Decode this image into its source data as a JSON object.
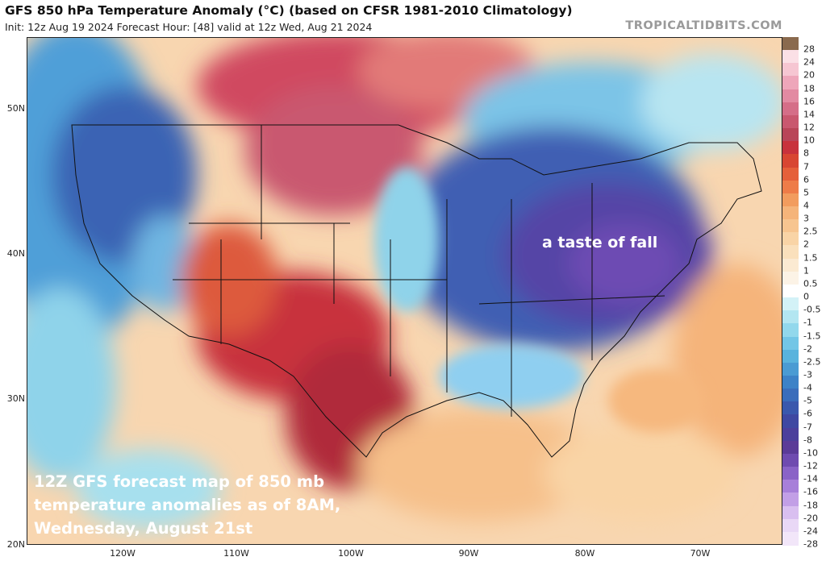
{
  "header": {
    "title": "GFS 850 hPa Temperature Anomaly (°C) (based on CFSR 1981-2010 Climatology)",
    "subtitle": "Init: 12z Aug 19 2024   Forecast Hour: [48]   valid at 12z Wed, Aug 21 2024",
    "brand": "TROPICALTIDBITS.COM"
  },
  "axes": {
    "lat_labels": [
      "50N",
      "40N",
      "30N",
      "20N"
    ],
    "lon_labels": [
      "120W",
      "110W",
      "100W",
      "90W",
      "80W",
      "70W"
    ]
  },
  "colorbar": {
    "levels": [
      "28",
      "24",
      "20",
      "18",
      "16",
      "14",
      "12",
      "10",
      "8",
      "7",
      "6",
      "5",
      "4",
      "3",
      "2.5",
      "2",
      "1.5",
      "1",
      "0.5",
      "0",
      "-0.5",
      "-1",
      "-1.5",
      "-2",
      "-2.5",
      "-3",
      "-4",
      "-5",
      "-6",
      "-7",
      "-8",
      "-10",
      "-12",
      "-14",
      "-16",
      "-18",
      "-20",
      "-24",
      "-28"
    ],
    "colors": [
      "#8a6a4e",
      "#fbe0e6",
      "#f6c6d2",
      "#eea6ba",
      "#e28aa2",
      "#d56e88",
      "#c9586f",
      "#b94558",
      "#c8323c",
      "#d84632",
      "#e5603a",
      "#ee7c48",
      "#f29c5e",
      "#f5b47a",
      "#f7c590",
      "#f9d4a6",
      "#fae0bc",
      "#fbead2",
      "#fcf3e6",
      "#ffffff",
      "#d3f2f7",
      "#b3e6f1",
      "#92d8ec",
      "#73c6e6",
      "#59b3dd",
      "#4a9bd3",
      "#3d82c7",
      "#3a6dbb",
      "#3a58ad",
      "#3f48a2",
      "#4c3f9c",
      "#5b3b98",
      "#6f4bb0",
      "#8a63c7",
      "#a77fd9",
      "#c29fe6",
      "#d9bff0",
      "#e9d8f6",
      "#f2e6f9"
    ]
  },
  "annotations": {
    "region_label": "a taste of fall",
    "caption_lines": [
      "12Z GFS forecast map of 850 mb",
      "temperature anomalies as of 8AM,",
      "Wednesday, August 21st"
    ]
  }
}
